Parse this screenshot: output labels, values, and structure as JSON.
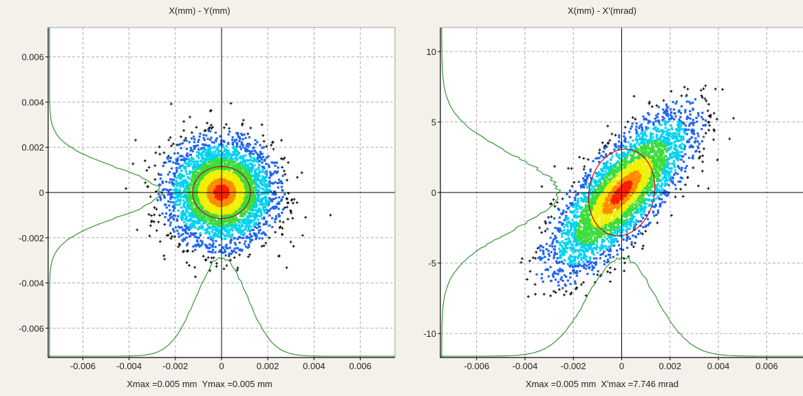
{
  "colors": {
    "background": "#f4f1ea",
    "plot_background": "#ffffff",
    "axes": "#000000",
    "grid": "#aaaaaa",
    "profile_line": "#228b22",
    "ellipse": "#cc0000",
    "density_scale": [
      "#000000",
      "#1e64f0",
      "#00d2f0",
      "#3cdc3c",
      "#f0f000",
      "#ff8c00",
      "#ff1e00"
    ]
  },
  "chart_data": [
    {
      "type": "scatter",
      "title": "X(mm) - Y(mm)",
      "xlabel": "",
      "ylabel": "",
      "xlim": [
        -0.0075,
        0.0075
      ],
      "ylim": [
        -0.0073,
        0.0073
      ],
      "x_ticks": [
        -0.006,
        -0.004,
        -0.002,
        0,
        0.002,
        0.004,
        0.006
      ],
      "x_tick_labels": [
        "-0.006",
        "-0.004",
        "-0.002",
        "0",
        "0.002",
        "0.004",
        "0.006"
      ],
      "y_ticks": [
        0.006,
        0.004,
        0.002,
        0,
        -0.002,
        -0.004,
        -0.006
      ],
      "y_tick_labels": [
        "0.006",
        "0.004",
        "0.002",
        "0",
        "-0.002",
        "-0.004",
        "-0.006"
      ],
      "grid": true,
      "distribution": {
        "center": [
          0,
          0
        ],
        "sigma_x": 0.0011,
        "sigma_y": 0.0011,
        "correlation": 0,
        "x_extent": [
          -0.0049,
          0.005
        ],
        "y_extent": [
          -0.0044,
          0.0047
        ]
      },
      "rms_ellipse": {
        "center": [
          0,
          0
        ],
        "semi_axis_x": 0.00125,
        "semi_axis_y": 0.00115,
        "tilt": 0
      },
      "info": {
        "xmax_label": "Xmax =0.005 mm",
        "ymax_label": "Ymax =0.005 mm"
      }
    },
    {
      "type": "scatter",
      "title": "X(mm) - X'(mrad)",
      "xlabel": "",
      "ylabel": "",
      "xlim": [
        -0.0075,
        0.0075
      ],
      "ylim": [
        -11.7,
        11.7
      ],
      "x_ticks": [
        -0.006,
        -0.004,
        -0.002,
        0,
        0.002,
        0.004,
        0.006
      ],
      "x_tick_labels": [
        "-0.006",
        "-0.004",
        "-0.002",
        "0",
        "0.002",
        "0.004",
        "0.006"
      ],
      "y_ticks": [
        10,
        5,
        0,
        -5,
        -10
      ],
      "y_tick_labels": [
        "10",
        "5",
        "0",
        "-5",
        "-10"
      ],
      "grid": true,
      "distribution": {
        "center": [
          0,
          0
        ],
        "sigma_x": 0.0014,
        "sigma_y": 2.7,
        "correlation": 0.78,
        "x_extent": [
          -0.0042,
          0.005
        ],
        "y_extent": [
          -7.4,
          7.6
        ]
      },
      "rms_ellipse": {
        "center": [
          0,
          0
        ],
        "semi_axis_x": 0.00135,
        "semi_axis_y": 3.1,
        "tilt": 0.2
      },
      "info": {
        "xmax_label": "Xmax =0.005 mm",
        "ymax_label": "X'max =7.746 mrad"
      }
    }
  ]
}
